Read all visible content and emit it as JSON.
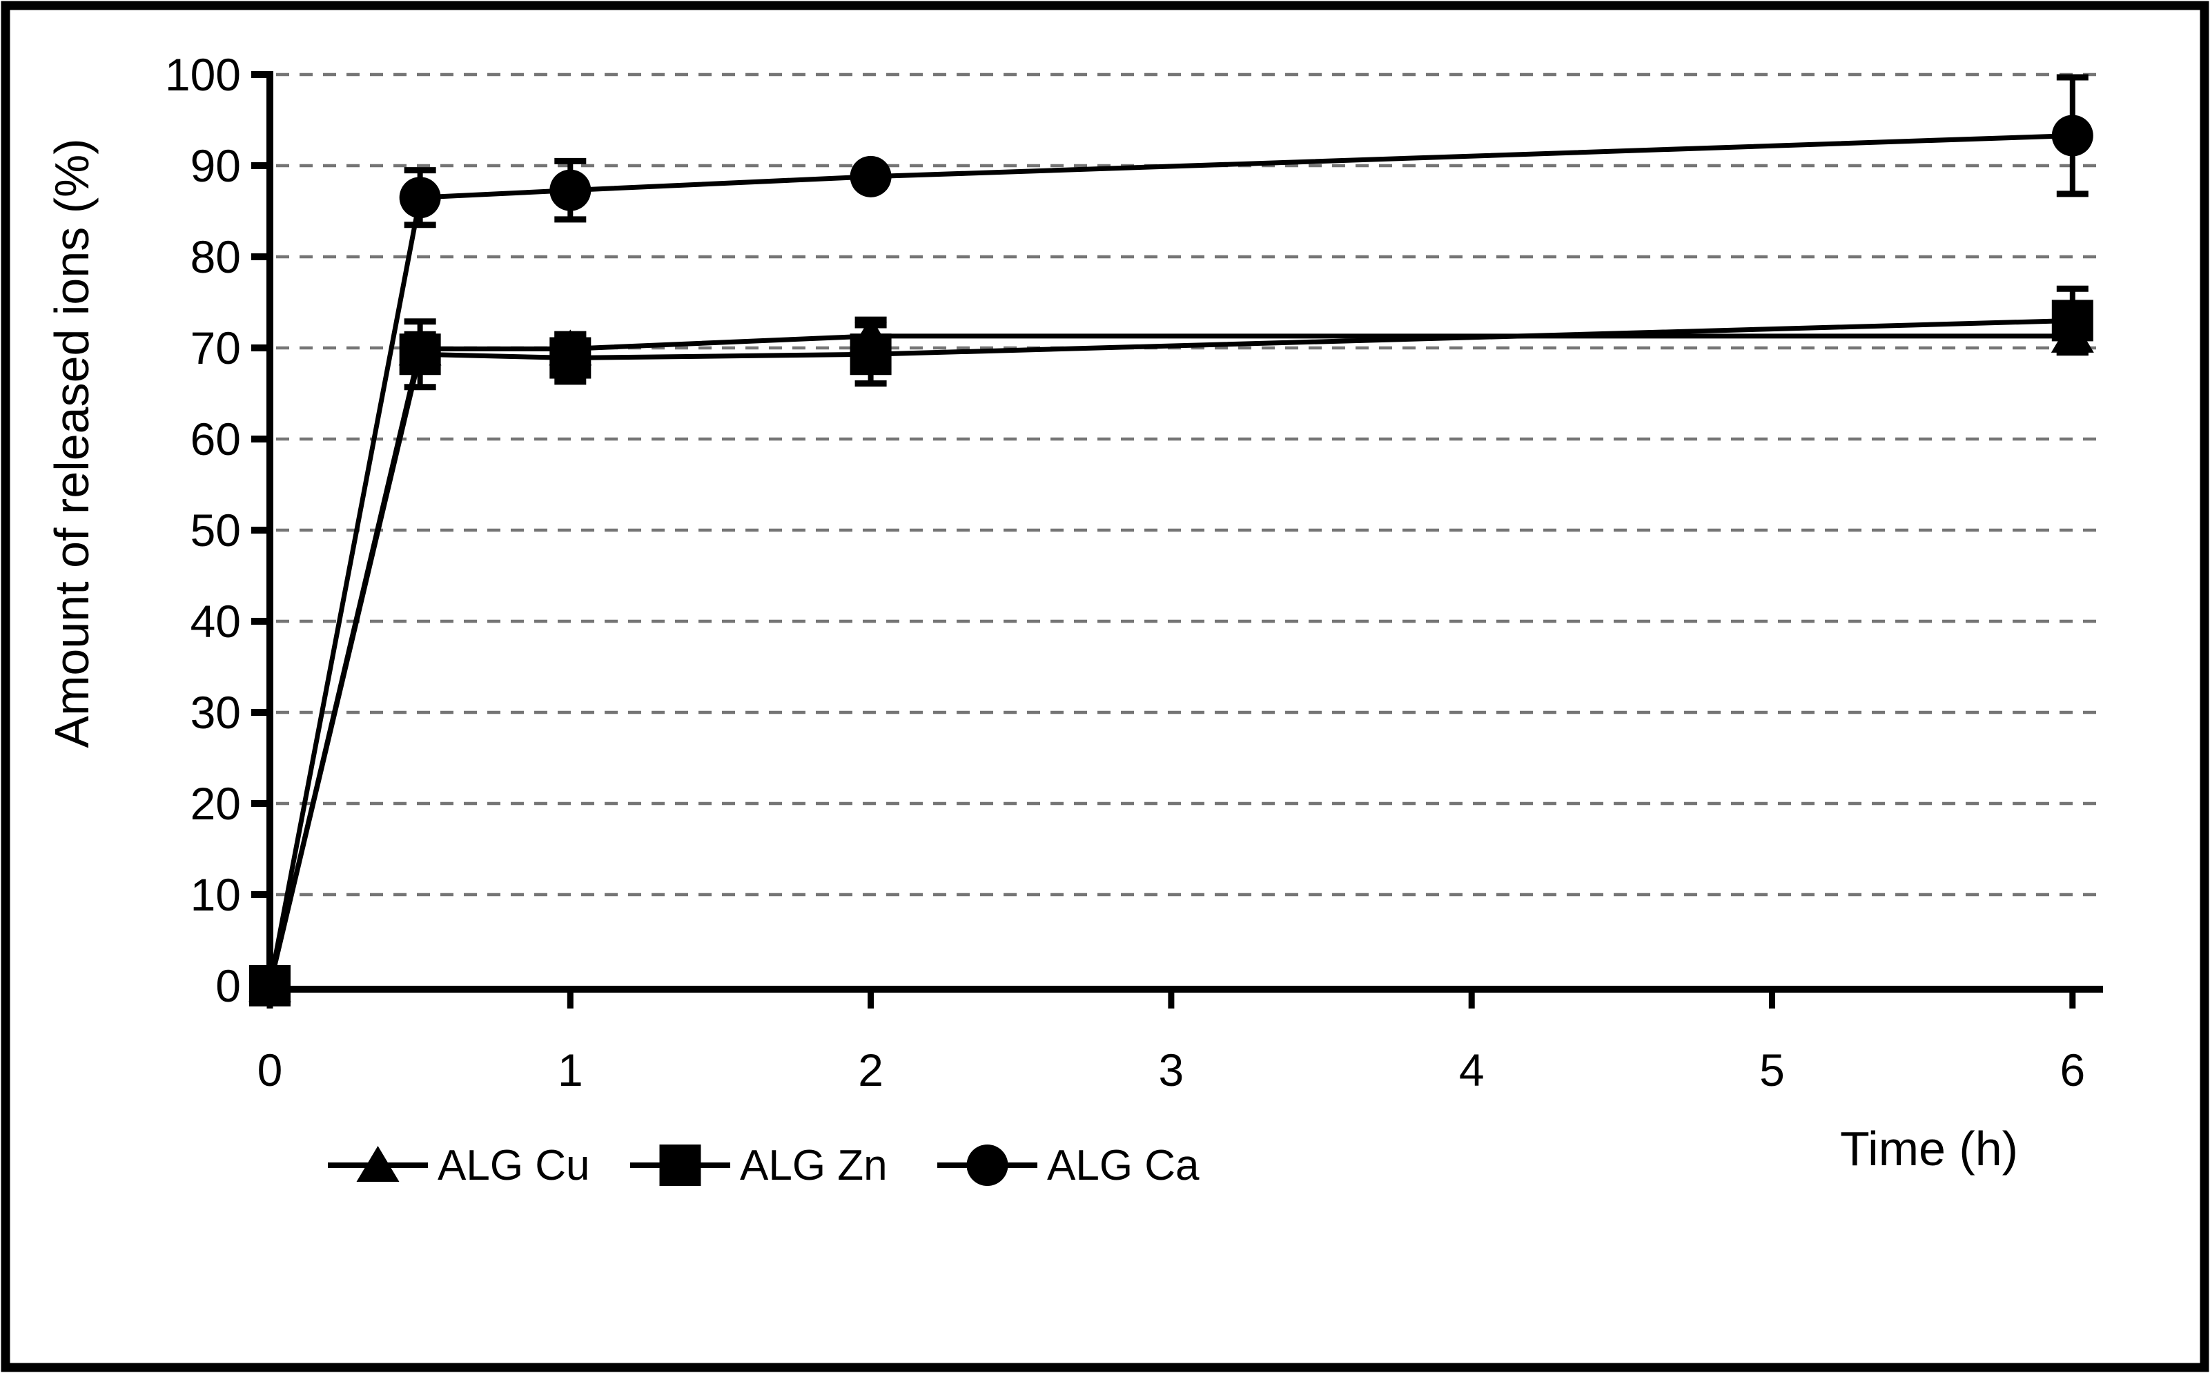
{
  "figure": {
    "background_color": "#ffffff",
    "border_color": "#000000",
    "gridline_color": "#757575",
    "series_color": "#000000"
  },
  "chart_data": {
    "type": "line",
    "title": "",
    "xlabel": "Time (h)",
    "ylabel": "Amount of released ions (%)",
    "x": [
      0,
      0.5,
      1,
      2,
      6
    ],
    "xlim": [
      0,
      6.1
    ],
    "ylim": [
      0,
      100
    ],
    "xticks": [
      0,
      1,
      2,
      3,
      4,
      5,
      6
    ],
    "yticks": [
      0,
      10,
      20,
      30,
      40,
      50,
      60,
      70,
      80,
      90,
      100
    ],
    "grid": "horizontal-dashed",
    "legend_position": "bottom-left",
    "series": [
      {
        "name": "ALG Cu",
        "marker": "triangle",
        "color": "#000000",
        "values": [
          0,
          69.9,
          69.9,
          71.3,
          71.3
        ],
        "errors": [
          0,
          1.6,
          1.6,
          1.8,
          1.8
        ]
      },
      {
        "name": "ALG Zn",
        "marker": "square",
        "color": "#000000",
        "values": [
          0,
          69.3,
          68.9,
          69.3,
          73.0
        ],
        "errors": [
          0,
          3.6,
          2.6,
          3.2,
          3.5
        ]
      },
      {
        "name": "ALG Ca",
        "marker": "circle",
        "color": "#000000",
        "values": [
          0,
          86.5,
          87.3,
          88.8,
          93.3
        ],
        "errors": [
          0,
          3.0,
          3.2,
          1.0,
          6.4
        ]
      }
    ]
  }
}
